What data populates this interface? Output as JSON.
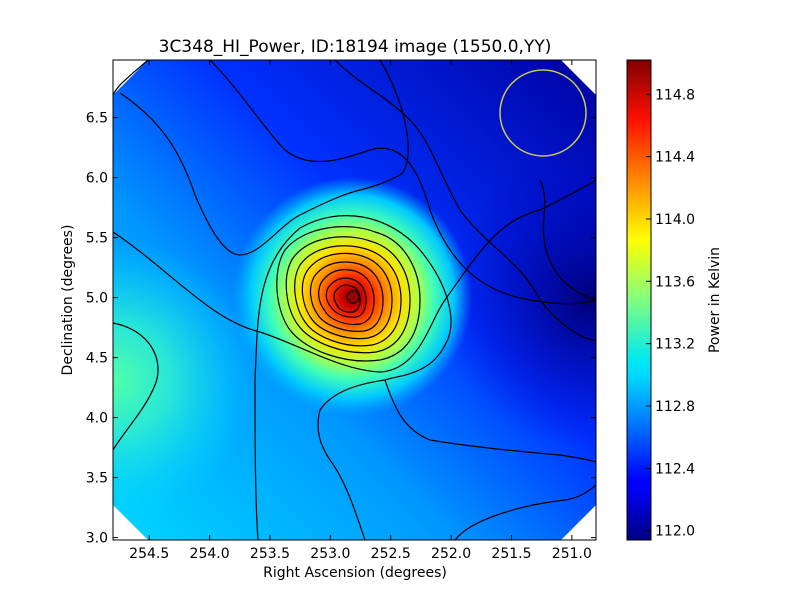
{
  "chart_data": {
    "type": "heatmap",
    "title": "3C348_HI_Power, ID:18194 image (1550.0,YY)",
    "xlabel": "Right Ascension (degrees)",
    "ylabel": "Declination (degrees)",
    "colorbar_label": "Power in Kelvin",
    "xlim": [
      254.8,
      250.8
    ],
    "ylim": [
      2.98,
      6.98
    ],
    "x_ticks": [
      254.5,
      254.0,
      253.5,
      253.0,
      252.5,
      252.0,
      251.5,
      251.0
    ],
    "x_tick_labels": [
      "254.5",
      "254.0",
      "253.5",
      "253.0",
      "252.5",
      "252.0",
      "251.5",
      "251.0"
    ],
    "y_ticks": [
      3.0,
      3.5,
      4.0,
      4.5,
      5.0,
      5.5,
      6.0,
      6.5
    ],
    "y_tick_labels": [
      "3.0",
      "3.5",
      "4.0",
      "4.5",
      "5.0",
      "5.5",
      "6.0",
      "6.5"
    ],
    "colorbar_range": [
      111.94,
      115.02
    ],
    "colorbar_ticks": [
      112.0,
      112.4,
      112.8,
      113.2,
      113.6,
      114.0,
      114.4,
      114.8
    ],
    "colorbar_tick_labels": [
      "112.0",
      "112.4",
      "112.8",
      "113.2",
      "113.6",
      "114.0",
      "114.4",
      "114.8"
    ],
    "colormap": "jet",
    "peak": {
      "ra": 252.8,
      "dec": 5.0,
      "power": 115.0
    },
    "minimum": {
      "ra": 250.9,
      "dec": 6.3,
      "power": 112.0
    },
    "background_power": 112.3,
    "warm_region": {
      "ra": 254.7,
      "dec": 4.25,
      "power": 113.4
    },
    "grid": false,
    "beam_circle": {
      "ra": 251.25,
      "dec": 6.55,
      "radius_deg": 0.36,
      "color": "#c8c850"
    },
    "contour_color": "#000000"
  }
}
